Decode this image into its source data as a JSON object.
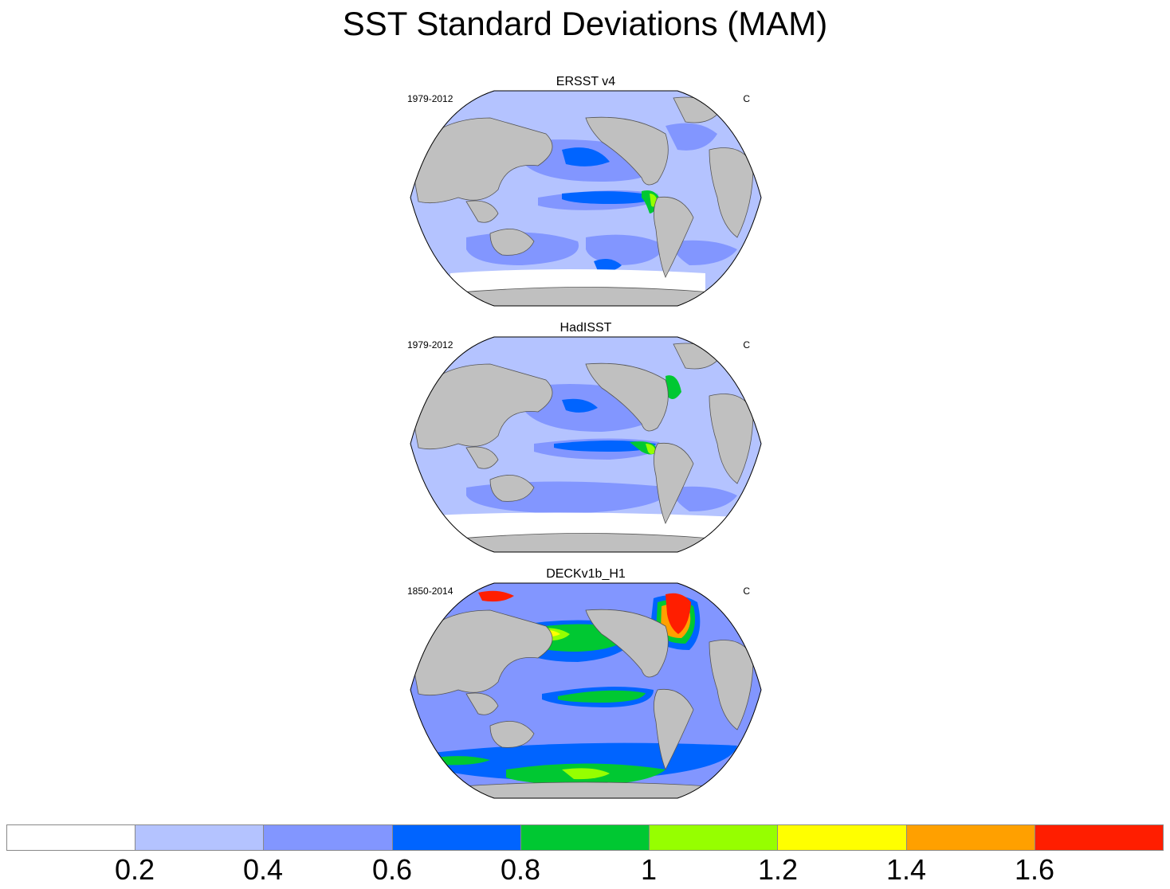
{
  "title": "SST Standard Deviations (MAM)",
  "panels": [
    {
      "name": "ERSST v4",
      "period": "1979-2012",
      "units": "C"
    },
    {
      "name": "HadISST",
      "period": "1979-2012",
      "units": "C"
    },
    {
      "name": "DECKv1b_H1",
      "period": "1850-2014",
      "units": "C"
    }
  ],
  "colorbar": {
    "levels": [
      "0.2",
      "0.4",
      "0.6",
      "0.8",
      "1",
      "1.2",
      "1.4",
      "1.6"
    ],
    "colors": [
      "#ffffff",
      "#b4c3ff",
      "#8296ff",
      "#0064ff",
      "#00c832",
      "#96ff00",
      "#ffff00",
      "#ffa000",
      "#ff1e00"
    ]
  },
  "land_color": "#c0c0c0",
  "coast_color": "#555555"
}
